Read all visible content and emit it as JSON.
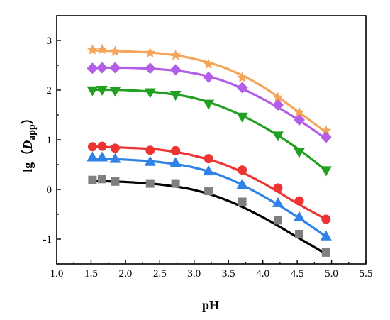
{
  "chart_data": {
    "type": "scatter",
    "xlabel": "pH",
    "ylabel": {
      "prefix": "lg（",
      "italic": "D",
      "subscript": "app",
      "suffix": "）"
    },
    "xlim": [
      1.0,
      5.5
    ],
    "ylim": [
      -1.5,
      3.5
    ],
    "xticks": [
      "1.0",
      "1.5",
      "2.0",
      "2.5",
      "3.0",
      "3.5",
      "4.0",
      "4.5",
      "5.0",
      "5.5"
    ],
    "yticks": [
      "-1",
      "0",
      "1",
      "2",
      "3"
    ],
    "grid": false,
    "legend": "none",
    "series": [
      {
        "marker": "star",
        "color": "#f5a55a",
        "x": [
          1.52,
          1.66,
          1.85,
          2.36,
          2.73,
          3.21,
          3.7,
          4.22,
          4.53,
          4.92
        ],
        "y": [
          2.81,
          2.82,
          2.78,
          2.75,
          2.7,
          2.52,
          2.25,
          1.85,
          1.55,
          1.18
        ],
        "fit": [
          [
            1.52,
            2.8
          ],
          [
            2.0,
            2.78
          ],
          [
            2.5,
            2.74
          ],
          [
            3.0,
            2.63
          ],
          [
            3.5,
            2.42
          ],
          [
            4.0,
            2.07
          ],
          [
            4.5,
            1.58
          ],
          [
            4.92,
            1.15
          ]
        ]
      },
      {
        "marker": "diamond",
        "color": "#b25ee6",
        "x": [
          1.52,
          1.66,
          1.85,
          2.36,
          2.73,
          3.21,
          3.7,
          4.22,
          4.53,
          4.92
        ],
        "y": [
          2.44,
          2.45,
          2.45,
          2.44,
          2.41,
          2.26,
          2.05,
          1.7,
          1.4,
          1.05
        ],
        "fit": [
          [
            1.52,
            2.45
          ],
          [
            2.0,
            2.45
          ],
          [
            2.5,
            2.42
          ],
          [
            3.0,
            2.34
          ],
          [
            3.5,
            2.15
          ],
          [
            4.0,
            1.82
          ],
          [
            4.5,
            1.42
          ],
          [
            4.92,
            1.02
          ]
        ]
      },
      {
        "marker": "triangle-down",
        "color": "#22a022",
        "x": [
          1.52,
          1.66,
          1.85,
          2.36,
          2.73,
          3.21,
          3.7,
          4.22,
          4.53,
          4.92
        ],
        "y": [
          1.99,
          2.0,
          1.98,
          1.95,
          1.9,
          1.72,
          1.46,
          1.08,
          0.75,
          0.38
        ],
        "fit": [
          [
            1.52,
            2.01
          ],
          [
            2.0,
            2.0
          ],
          [
            2.5,
            1.95
          ],
          [
            3.0,
            1.84
          ],
          [
            3.5,
            1.61
          ],
          [
            4.0,
            1.27
          ],
          [
            4.5,
            0.83
          ],
          [
            4.92,
            0.38
          ]
        ]
      },
      {
        "marker": "circle",
        "color": "#ee3333",
        "x": [
          1.52,
          1.66,
          1.85,
          2.36,
          2.73,
          3.21,
          3.7,
          4.22,
          4.53,
          4.92
        ],
        "y": [
          0.86,
          0.87,
          0.83,
          0.79,
          0.78,
          0.62,
          0.39,
          0.03,
          -0.23,
          -0.6
        ],
        "fit": [
          [
            1.52,
            0.86
          ],
          [
            2.0,
            0.84
          ],
          [
            2.5,
            0.8
          ],
          [
            3.0,
            0.68
          ],
          [
            3.5,
            0.47
          ],
          [
            4.0,
            0.13
          ],
          [
            4.5,
            -0.28
          ],
          [
            4.92,
            -0.6
          ]
        ]
      },
      {
        "marker": "triangle-up",
        "color": "#2f82e6",
        "x": [
          1.52,
          1.66,
          1.85,
          2.36,
          2.73,
          3.21,
          3.7,
          4.22,
          4.53,
          4.92
        ],
        "y": [
          0.65,
          0.65,
          0.62,
          0.56,
          0.54,
          0.37,
          0.1,
          -0.27,
          -0.55,
          -0.94
        ],
        "fit": [
          [
            1.52,
            0.62
          ],
          [
            2.0,
            0.6
          ],
          [
            2.5,
            0.55
          ],
          [
            3.0,
            0.44
          ],
          [
            3.5,
            0.22
          ],
          [
            4.0,
            -0.13
          ],
          [
            4.5,
            -0.55
          ],
          [
            4.92,
            -0.95
          ]
        ]
      },
      {
        "marker": "square",
        "color": "#7f7f7f",
        "line_color": "#000000",
        "x": [
          1.52,
          1.66,
          1.85,
          2.36,
          2.73,
          3.21,
          3.7,
          4.22,
          4.53,
          4.92
        ],
        "y": [
          0.19,
          0.21,
          0.16,
          0.12,
          0.12,
          -0.03,
          -0.25,
          -0.62,
          -0.9,
          -1.27
        ],
        "fit": [
          [
            1.52,
            0.17
          ],
          [
            2.0,
            0.15
          ],
          [
            2.5,
            0.1
          ],
          [
            3.0,
            -0.01
          ],
          [
            3.5,
            -0.23
          ],
          [
            4.0,
            -0.56
          ],
          [
            4.5,
            -0.96
          ],
          [
            4.92,
            -1.3
          ]
        ]
      }
    ]
  }
}
